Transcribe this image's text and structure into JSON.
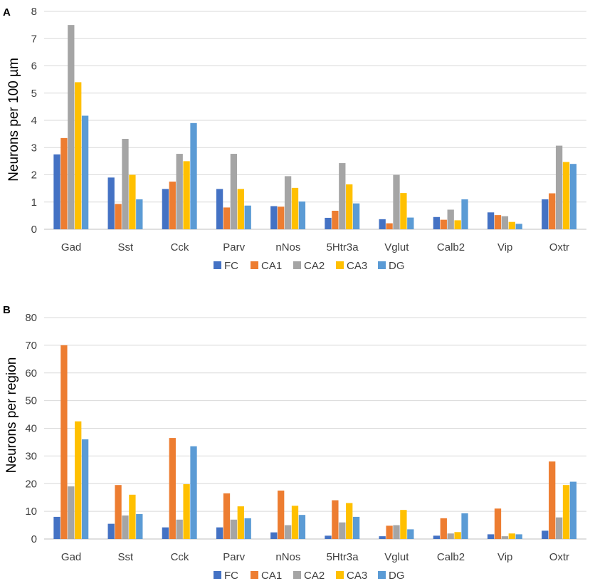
{
  "series_names": [
    "FC",
    "CA1",
    "CA2",
    "CA3",
    "DG"
  ],
  "colors": [
    "#4472C4",
    "#ED7D31",
    "#A5A5A5",
    "#FFC000",
    "#5B9BD5"
  ],
  "chart_data": [
    {
      "type": "bar",
      "panel_label": "A",
      "title": "",
      "xlabel": "",
      "ylabel": "Neurons per 100 µm",
      "ylim": [
        0,
        8
      ],
      "yticks": [
        0,
        1,
        2,
        3,
        4,
        5,
        6,
        7,
        8
      ],
      "legend": "bottom",
      "categories": [
        "Gad",
        "Sst",
        "Cck",
        "Parv",
        "nNos",
        "5Htr3a",
        "Vglut",
        "Calb2",
        "Vip",
        "Oxtr"
      ],
      "series": [
        {
          "name": "FC",
          "values": [
            2.75,
            1.9,
            1.48,
            1.48,
            0.85,
            0.42,
            0.37,
            0.45,
            0.62,
            1.1
          ]
        },
        {
          "name": "CA1",
          "values": [
            3.35,
            0.93,
            1.75,
            0.8,
            0.83,
            0.68,
            0.22,
            0.35,
            0.52,
            1.32
          ]
        },
        {
          "name": "CA2",
          "values": [
            7.5,
            3.32,
            2.77,
            2.77,
            1.95,
            2.43,
            2.0,
            0.72,
            0.48,
            3.07
          ]
        },
        {
          "name": "CA3",
          "values": [
            5.4,
            2.0,
            2.5,
            1.48,
            1.52,
            1.65,
            1.33,
            0.33,
            0.27,
            2.47
          ]
        },
        {
          "name": "DG",
          "values": [
            4.17,
            1.1,
            3.9,
            0.87,
            1.02,
            0.95,
            0.43,
            1.1,
            0.2,
            2.4
          ]
        }
      ]
    },
    {
      "type": "bar",
      "panel_label": "B",
      "title": "",
      "xlabel": "",
      "ylabel": "Neurons per region",
      "ylim": [
        0,
        80
      ],
      "yticks": [
        0,
        10,
        20,
        30,
        40,
        50,
        60,
        70,
        80
      ],
      "legend": "bottom",
      "categories": [
        "Gad",
        "Sst",
        "Cck",
        "Parv",
        "nNos",
        "5Htr3a",
        "Vglut",
        "Calb2",
        "Vip",
        "Oxtr"
      ],
      "series": [
        {
          "name": "FC",
          "values": [
            8.0,
            5.5,
            4.2,
            4.2,
            2.4,
            1.2,
            1.0,
            1.2,
            1.7,
            3.0
          ]
        },
        {
          "name": "CA1",
          "values": [
            70.0,
            19.5,
            36.5,
            16.5,
            17.5,
            14.0,
            4.8,
            7.5,
            11.0,
            28.0
          ]
        },
        {
          "name": "CA2",
          "values": [
            19.0,
            8.5,
            7.0,
            7.0,
            5.0,
            6.0,
            5.0,
            2.0,
            1.0,
            7.8
          ]
        },
        {
          "name": "CA3",
          "values": [
            42.5,
            16.0,
            19.8,
            11.8,
            12.0,
            13.0,
            10.5,
            2.5,
            2.0,
            19.5
          ]
        },
        {
          "name": "DG",
          "values": [
            36.0,
            9.0,
            33.5,
            7.5,
            8.7,
            8.0,
            3.5,
            9.3,
            1.7,
            20.7
          ]
        }
      ]
    }
  ]
}
